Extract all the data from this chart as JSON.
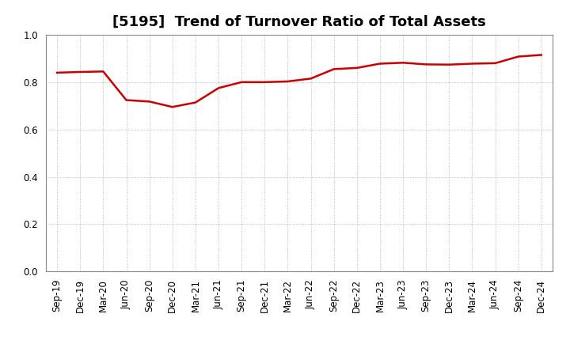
{
  "title": "[5195]  Trend of Turnover Ratio of Total Assets",
  "x_labels": [
    "Sep-19",
    "Dec-19",
    "Mar-20",
    "Jun-20",
    "Sep-20",
    "Dec-20",
    "Mar-21",
    "Jun-21",
    "Sep-21",
    "Dec-21",
    "Mar-22",
    "Jun-22",
    "Sep-22",
    "Dec-22",
    "Mar-23",
    "Jun-23",
    "Sep-23",
    "Dec-23",
    "Mar-24",
    "Jun-24",
    "Sep-24",
    "Dec-24"
  ],
  "y_values": [
    0.84,
    0.843,
    0.845,
    0.724,
    0.718,
    0.695,
    0.714,
    0.775,
    0.8,
    0.8,
    0.803,
    0.815,
    0.855,
    0.86,
    0.878,
    0.882,
    0.875,
    0.874,
    0.878,
    0.88,
    0.908,
    0.915
  ],
  "line_color": "#cc0000",
  "line_width": 1.8,
  "ylim": [
    0.0,
    1.0
  ],
  "yticks": [
    0.0,
    0.2,
    0.4,
    0.6,
    0.8,
    1.0
  ],
  "grid_color": "#aaaaaa",
  "bg_color": "#ffffff",
  "plot_bg_color": "#ffffff",
  "title_fontsize": 13,
  "tick_fontsize": 8.5
}
